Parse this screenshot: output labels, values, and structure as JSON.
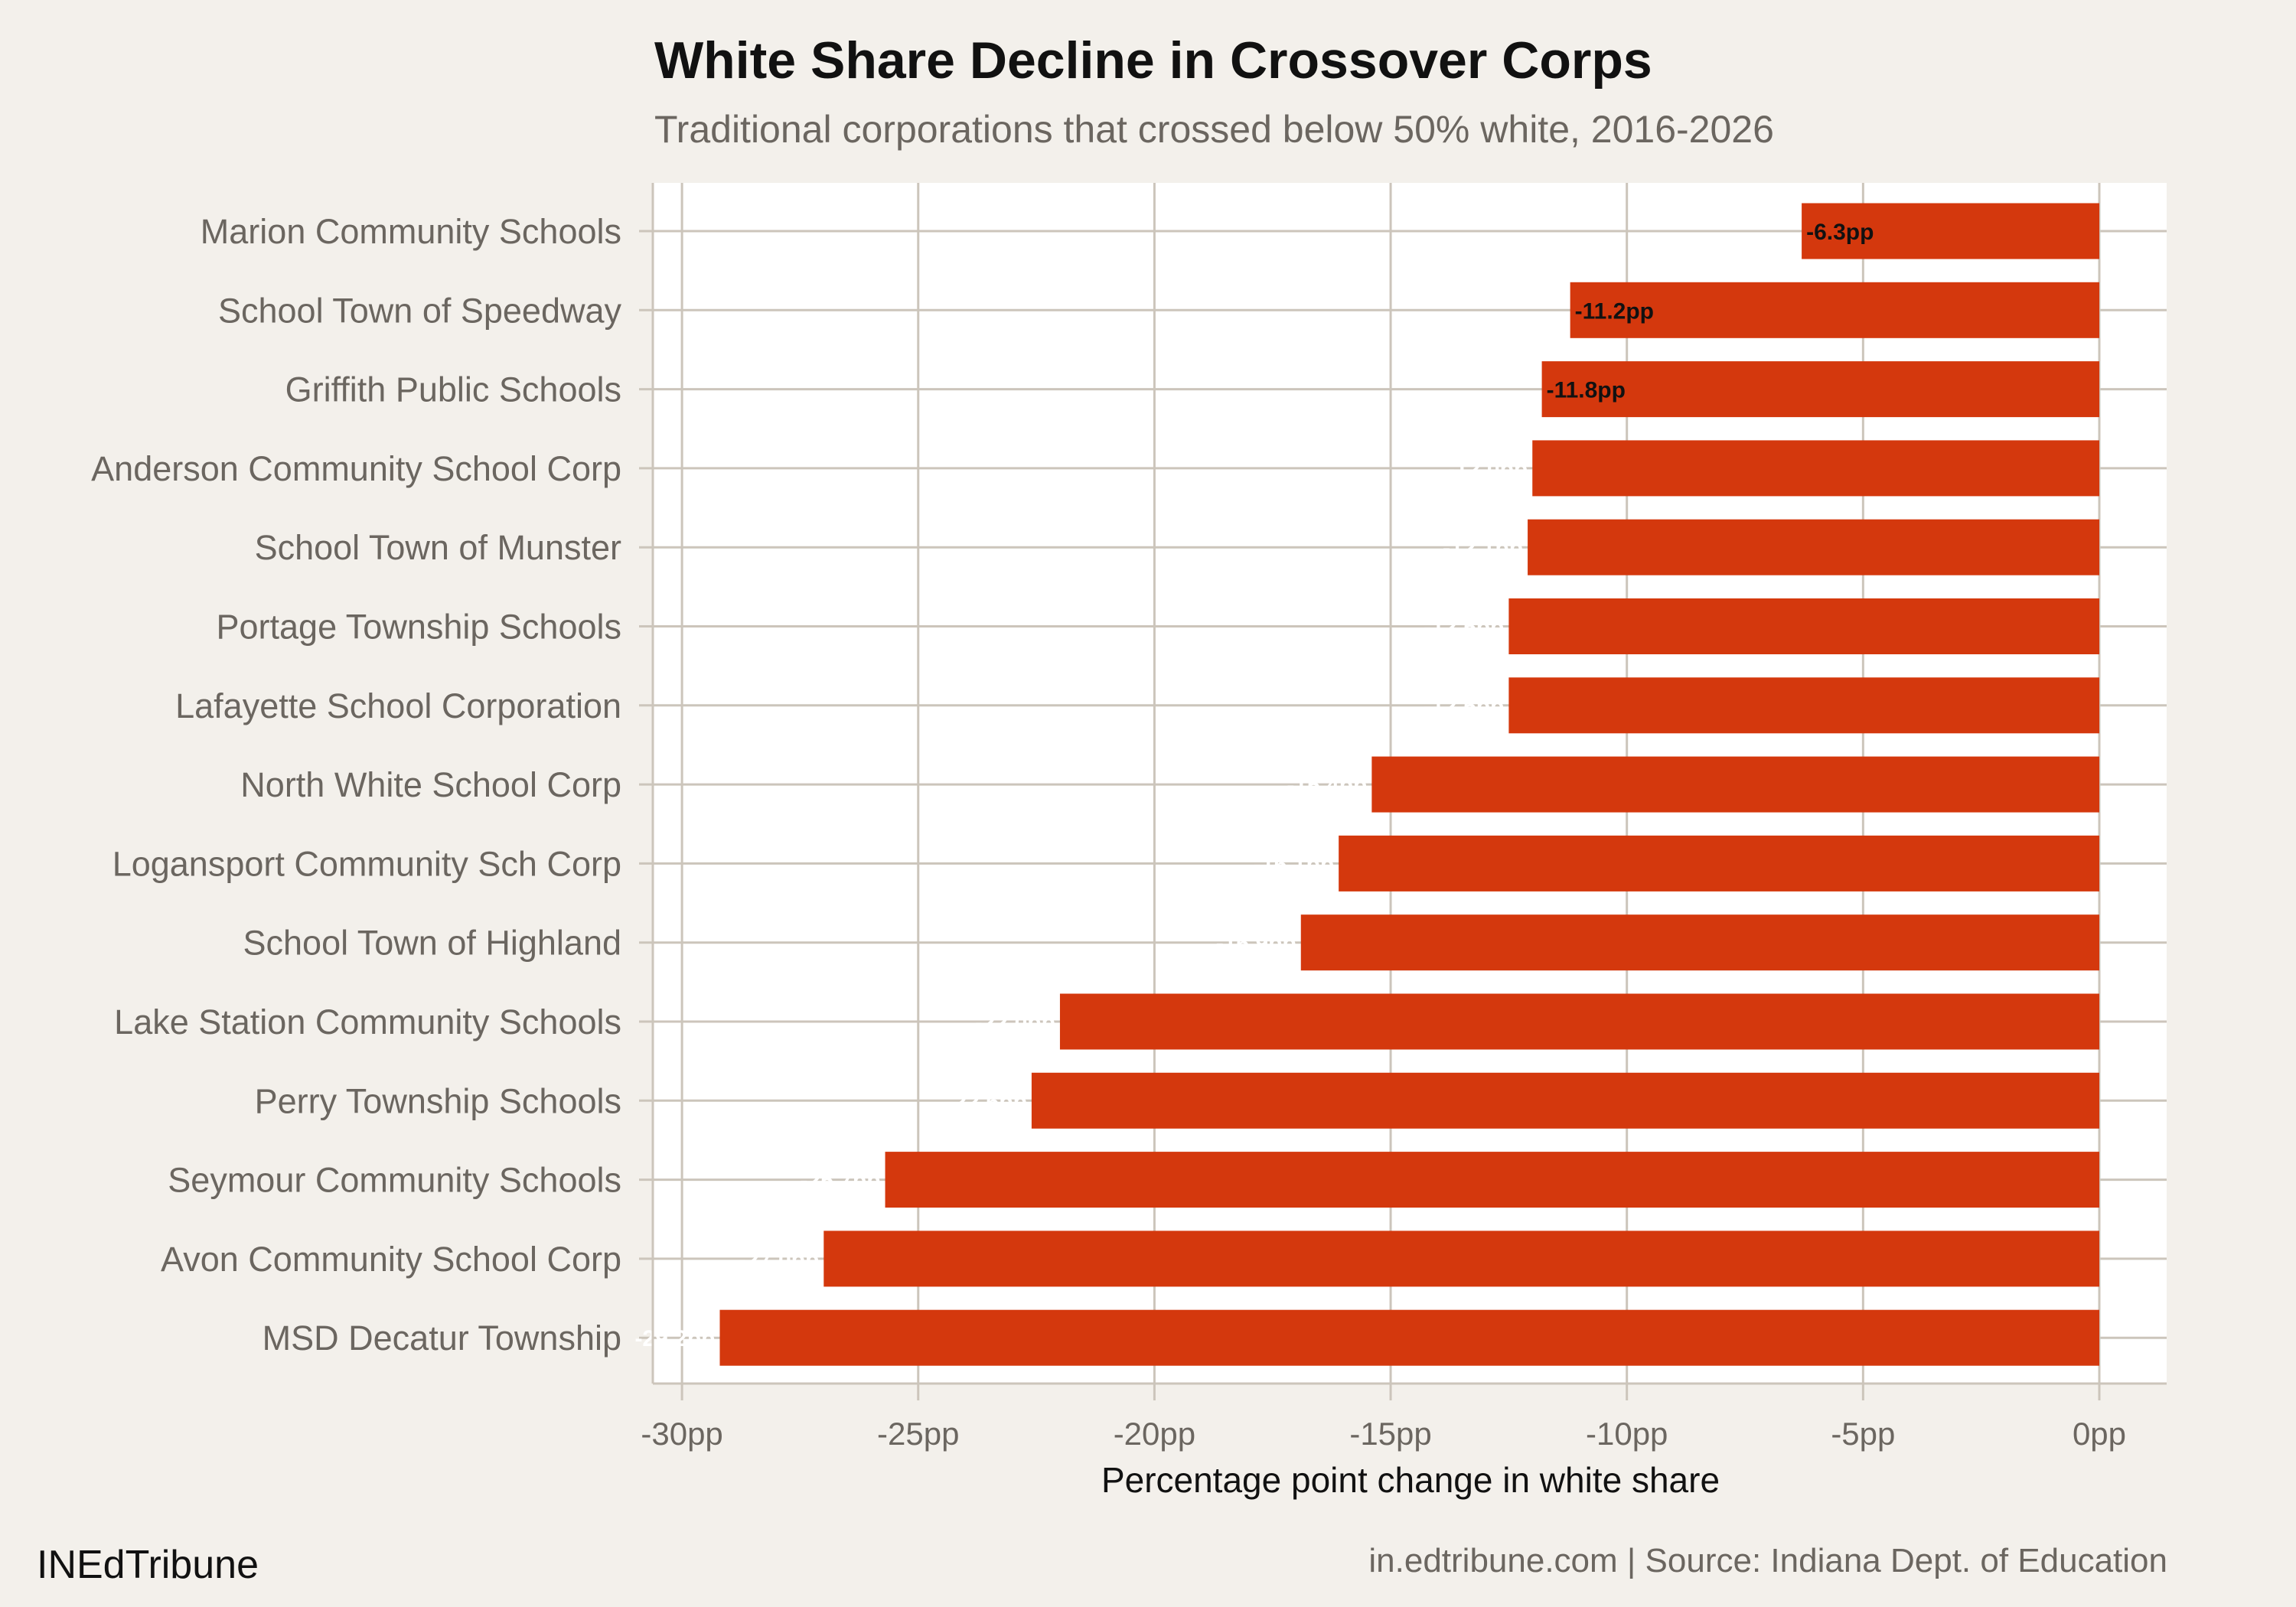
{
  "chart_data": {
    "type": "bar",
    "orientation": "horizontal",
    "title": "White Share Decline in Crossover Corps",
    "subtitle": "Traditional corporations that crossed below 50% white, 2016-2026",
    "xlabel": "Percentage point change in white share",
    "ylabel": "",
    "xlim": [
      -30,
      0
    ],
    "xticks": [
      "-30pp",
      "-25pp",
      "-20pp",
      "-15pp",
      "-10pp",
      "-5pp",
      "0pp"
    ],
    "xtick_values": [
      -30,
      -25,
      -20,
      -15,
      -10,
      -5,
      0
    ],
    "grid": true,
    "bar_color": "#d4380d",
    "categories": [
      "Marion Community Schools",
      "School Town of Speedway",
      "Griffith Public Schools",
      "Anderson Community School Corp",
      "School Town of Munster",
      "Portage Township Schools",
      "Lafayette School Corporation",
      "North White School Corp",
      "Logansport Community Sch Corp",
      "School Town of Highland",
      "Lake Station Community Schools",
      "Perry Township Schools",
      "Seymour Community Schools",
      "Avon Community School Corp",
      "MSD Decatur Township"
    ],
    "values": [
      -6.3,
      -11.2,
      -11.8,
      -12.0,
      -12.1,
      -12.5,
      -12.5,
      -15.4,
      -16.1,
      -16.9,
      -22.0,
      -22.6,
      -25.7,
      -27.0,
      -29.2
    ],
    "data_labels": [
      "-6.3pp",
      "-11.2pp",
      "-11.8pp",
      "-12.0pp",
      "-12.1pp",
      "-12.5pp",
      "-12.5pp",
      "-15.4pp",
      "-16.1pp",
      "-16.9pp",
      "-22.0pp",
      "-22.6pp",
      "-25.7pp",
      "-27.0pp",
      "-29.2pp"
    ]
  },
  "footer": {
    "brand": "INEdTribune",
    "source": "in.edtribune.com | Source: Indiana Dept. of Education"
  }
}
